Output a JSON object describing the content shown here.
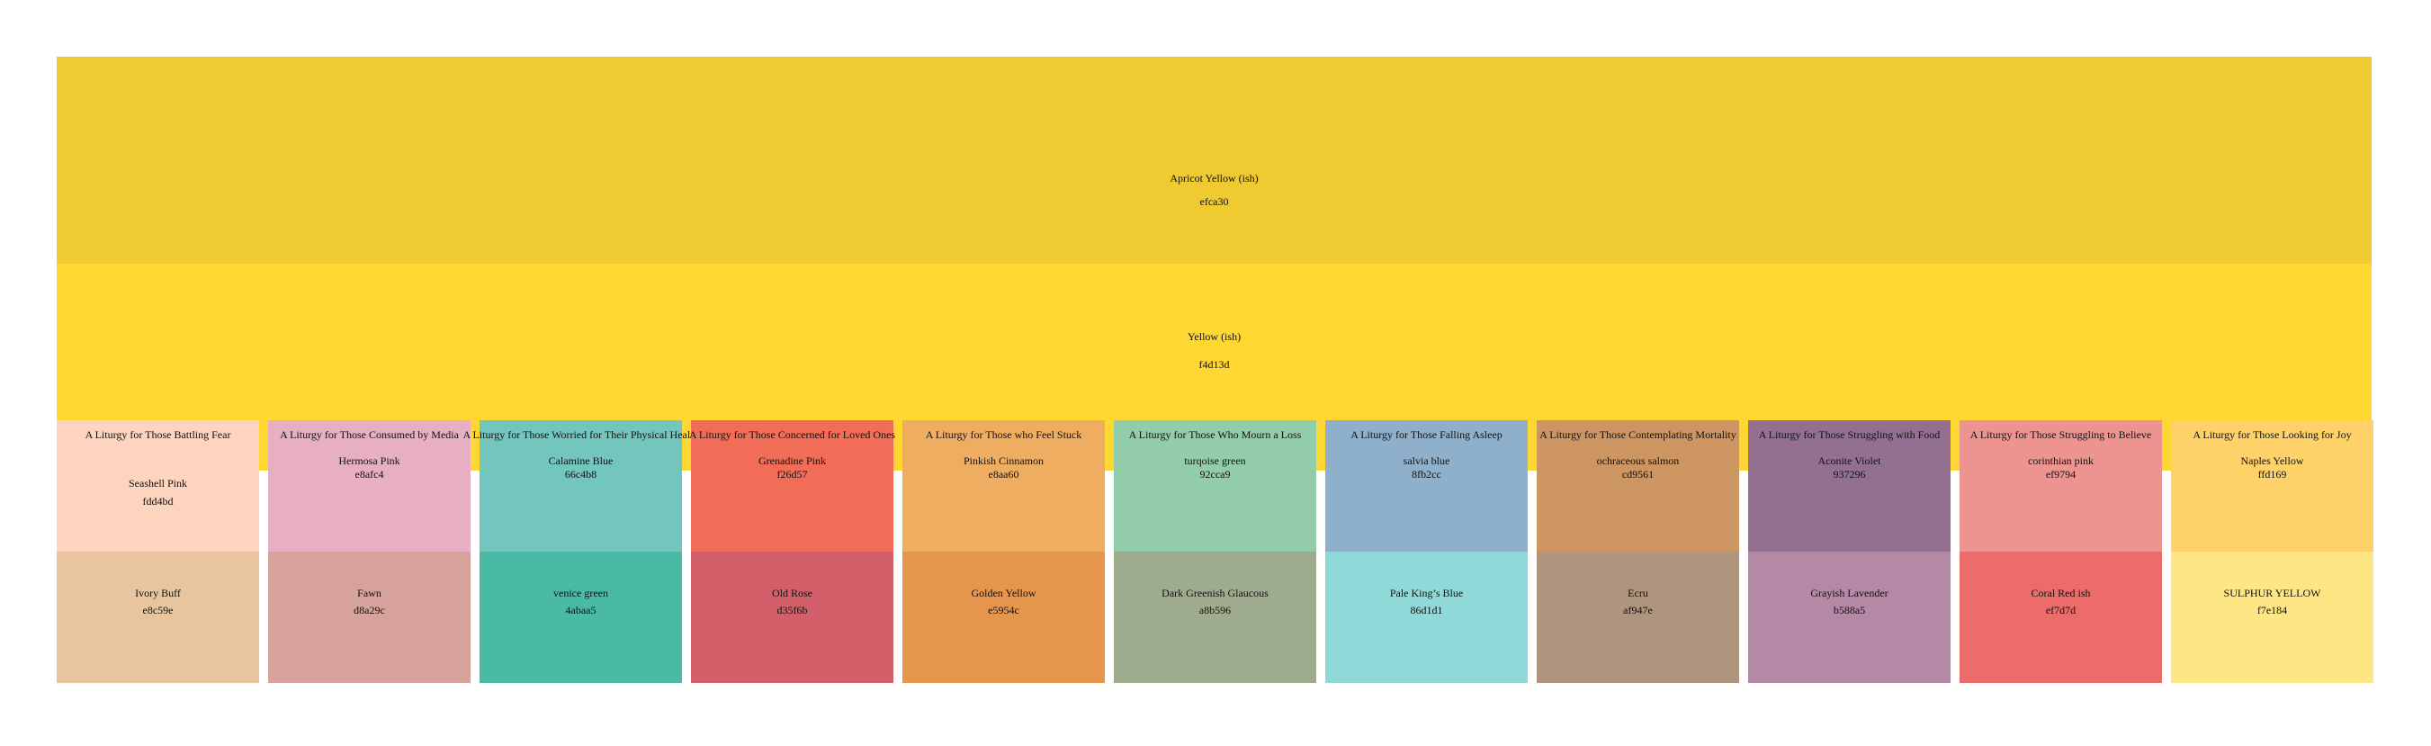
{
  "bands": [
    {
      "name": "Apricot Yellow (ish)",
      "code": "efca30",
      "color": "#efca30"
    },
    {
      "name": "Yellow (ish)",
      "code": "f4d13d",
      "color": "#fed732"
    }
  ],
  "columns": [
    {
      "title": "A Liturgy for Those Battling Fear",
      "upper": {
        "name": "Seashell Pink",
        "code": "fdd4bd",
        "color": "#fdd4bd"
      },
      "lower": {
        "name": "Ivory Buff",
        "code": "e8c59e",
        "color": "#e8c59e"
      }
    },
    {
      "title": "A Liturgy for Those Consumed by Media",
      "upper": {
        "name": "Hermosa Pink",
        "code": "e8afc4",
        "color": "#e8afc4"
      },
      "lower": {
        "name": "Fawn",
        "code": "d8a29c",
        "color": "#d8a29c"
      }
    },
    {
      "title": "A Liturgy for Those Worried for Their Physical Health",
      "upper": {
        "name": "Calamine Blue",
        "code": "66c4b8",
        "color": "#73c6bd"
      },
      "lower": {
        "name": "venice green",
        "code": "4abaa5",
        "color": "#4abaa5"
      }
    },
    {
      "title": "A Liturgy for Those Concerned for Loved Ones",
      "upper": {
        "name": "Grenadine Pink",
        "code": "f26d57",
        "color": "#f26d57"
      },
      "lower": {
        "name": "Old Rose",
        "code": "d35f6b",
        "color": "#d35f6b"
      }
    },
    {
      "title": "A Liturgy for Those who Feel Stuck",
      "upper": {
        "name": "Pinkish Cinnamon",
        "code": "e8aa60",
        "color": "#efad61"
      },
      "lower": {
        "name": "Golden Yellow",
        "code": "e5954c",
        "color": "#e5954c"
      }
    },
    {
      "title": "A Liturgy for Those Who Mourn a Loss",
      "upper": {
        "name": "turqoise green",
        "code": "92cca9",
        "color": "#92cca9"
      },
      "lower": {
        "name": "Dark Greenish Glaucous",
        "code": "a8b596",
        "color": "#9eab8c"
      }
    },
    {
      "title": "A Liturgy for Those Falling Asleep",
      "upper": {
        "name": "salvia blue",
        "code": "8fb2cc",
        "color": "#8fb0cb"
      },
      "lower": {
        "name": "Pale King’s Blue",
        "code": "86d1d1",
        "color": "#8fdad8"
      }
    },
    {
      "title": "A Liturgy for Those Contemplating Mortality",
      "upper": {
        "name": "ochraceous salmon",
        "code": "cd9561",
        "color": "#cd9561"
      },
      "lower": {
        "name": "Ecru",
        "code": "af947e",
        "color": "#af947e"
      }
    },
    {
      "title": "A Liturgy for Those Struggling with Food",
      "upper": {
        "name": "Aconite Violet",
        "code": "937296",
        "color": "#937092"
      },
      "lower": {
        "name": "Grayish Lavender",
        "code": "b588a5",
        "color": "#b588a5"
      }
    },
    {
      "title": "A Liturgy for Those Struggling to Believe",
      "upper": {
        "name": "corinthian pink",
        "code": "ef9794",
        "color": "#ed9491"
      },
      "lower": {
        "name": "Coral Red ish",
        "code": "ef7d7d",
        "color": "#ec6b6b"
      }
    },
    {
      "title": "A Liturgy for Those Looking for Joy",
      "upper": {
        "name": "Naples Yellow",
        "code": "ffd169",
        "color": "#ffd169"
      },
      "lower": {
        "name": "SULPHUR YELLOW",
        "code": "f7e184",
        "color": "#fee685"
      }
    }
  ]
}
